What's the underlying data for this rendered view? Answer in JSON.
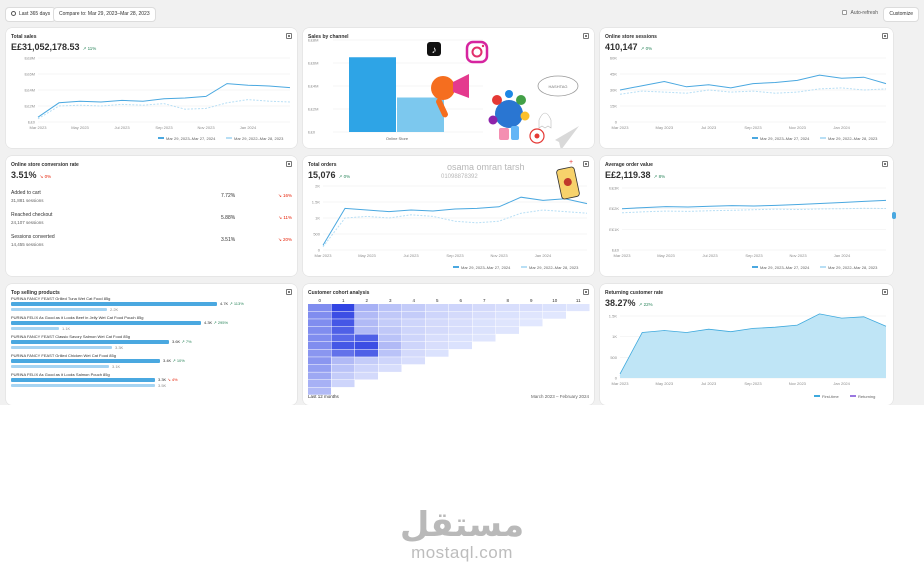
{
  "toolbar": {
    "date_range": "Last 365 days",
    "compare": "Compare to: Mar 29, 2023–Mar 28, 2023",
    "auto_refresh": "Auto-refresh",
    "customize": "Customize"
  },
  "cards": {
    "total_sales": {
      "title": "Total sales",
      "value": "E£31,052,178.53",
      "delta": "11%",
      "y_ticks": [
        "E£8M",
        "E£6M",
        "E£4M",
        "E£2M",
        "E£0"
      ],
      "x_ticks": [
        "Mar 2023",
        "May 2023",
        "Jul 2023",
        "Sep 2023",
        "Nov 2023",
        "Jan 2024"
      ],
      "legend": [
        "Mar 29, 2023–Mar 27, 2024",
        "Mar 29, 2022–Mar 28, 2023"
      ]
    },
    "sales_by_channel": {
      "title": "Sales by channel",
      "y_ticks": [
        "E£8M",
        "E£6M",
        "E£4M",
        "E£2M",
        "E£0"
      ],
      "category": "Online Store"
    },
    "sessions": {
      "title": "Online store sessions",
      "value": "410,147",
      "delta": "0%",
      "y_ticks": [
        "60K",
        "45K",
        "30K",
        "15K",
        "0"
      ],
      "x_ticks": [
        "Mar 2023",
        "May 2023",
        "Jul 2023",
        "Sep 2023",
        "Nov 2023",
        "Jan 2024"
      ],
      "legend": [
        "Mar 29, 2023–Mar 27, 2024",
        "Mar 29, 2022–Mar 28, 2023"
      ]
    },
    "conversion": {
      "title": "Online store conversion rate",
      "value": "3.51%",
      "delta": "0%",
      "rows": [
        {
          "label": "Added to cart",
          "sub": "31,881 sessions",
          "value": "7.72%",
          "change": "16%"
        },
        {
          "label": "Reached checkout",
          "sub": "24,107 sessions",
          "value": "5.88%",
          "change": "11%"
        },
        {
          "label": "Sessions converted",
          "sub": "14,455 sessions",
          "value": "3.51%",
          "change": "20%"
        }
      ]
    },
    "total_orders": {
      "title": "Total orders",
      "value": "15,076",
      "delta": "0%",
      "y_ticks": [
        "2K",
        "1.5K",
        "1K",
        "500",
        "0"
      ],
      "x_ticks": [
        "Mar 2023",
        "May 2023",
        "Jul 2023",
        "Sep 2023",
        "Nov 2023",
        "Jan 2024"
      ],
      "legend": [
        "Mar 29, 2023–Mar 27, 2024",
        "Mar 29, 2022–Mar 28, 2023"
      ]
    },
    "aov": {
      "title": "Average order value",
      "value": "E£2,119.38",
      "delta": "8%",
      "y_ticks": [
        "E£3K",
        "E£2K",
        "E£1K",
        "E£0"
      ],
      "x_ticks": [
        "Mar 2023",
        "May 2023",
        "Jul 2023",
        "Sep 2023",
        "Nov 2023",
        "Jan 2024"
      ],
      "legend": [
        "Mar 29, 2023–Mar 27, 2024",
        "Mar 29, 2022–Mar 28, 2023"
      ]
    },
    "top_products": {
      "title": "Top selling products",
      "items": [
        {
          "name": "PURINA FANCY FEAST Grilled Tuna Wet Cat Food 85g",
          "value": "4.7K",
          "change": "113%",
          "prev": "2.2K",
          "frac": 0.86,
          "prev_frac": 0.4
        },
        {
          "name": "PURINA FELIX As Good as it Looks Beef in Jelly Wet Cat Food Pouch 85g",
          "value": "4.3K",
          "change": "295%",
          "prev": "1.1K",
          "frac": 0.79,
          "prev_frac": 0.2
        },
        {
          "name": "PURINA FANCY FEAST Classic Savory Salmon Wet Cat Food 85g",
          "value": "3.6K",
          "change": "7%",
          "prev": "3.3K",
          "frac": 0.66,
          "prev_frac": 0.42
        },
        {
          "name": "PURINA FANCY FEAST Grilled Chicken Wet Cat Food 85g",
          "value": "3.4K",
          "change": "10%",
          "prev": "3.1K",
          "frac": 0.62,
          "prev_frac": 0.41
        },
        {
          "name": "PURINA FELIX As Good as it Looks Salmon Pouch 85g",
          "value": "3.3K",
          "change": "4%",
          "prev": "3.5K",
          "frac": 0.6,
          "prev_frac": 0.6
        }
      ]
    },
    "cohort": {
      "title": "Customer cohort analysis",
      "columns": [
        "0",
        "1",
        "2",
        "3",
        "4",
        "5",
        "6",
        "7",
        "8",
        "9",
        "10",
        "11"
      ],
      "footer_left": "Last 12 months",
      "footer_right": "March 2023 – February 2024"
    },
    "returning": {
      "title": "Returning customer rate",
      "value": "38.27%",
      "delta": "22%",
      "y_ticks": [
        "1.5K",
        "1K",
        "500",
        "0"
      ],
      "x_ticks": [
        "Mar 2023",
        "May 2023",
        "Jul 2023",
        "Sep 2023",
        "Nov 2023",
        "Jan 2024"
      ],
      "legend": [
        "First-time",
        "Returning"
      ]
    }
  },
  "overlay": {
    "name": "osama omran tarsh",
    "phone": "01098878392"
  },
  "watermark": {
    "arabic": "مستقل",
    "latin": "mostaql.com"
  },
  "colors": {
    "line_primary": "#4aa8e0",
    "line_secondary": "#b8dff5",
    "bar_primary": "#2ea4e6",
    "bar_secondary": "#7cc8ee",
    "up": "#29845a",
    "down": "#e51c00"
  },
  "chart_data": [
    {
      "type": "line",
      "title": "Total sales",
      "x": [
        "Mar 2023",
        "Apr 2023",
        "May 2023",
        "Jun 2023",
        "Jul 2023",
        "Aug 2023",
        "Sep 2023",
        "Oct 2023",
        "Nov 2023",
        "Dec 2023",
        "Jan 2024",
        "Feb 2024",
        "Mar 2024"
      ],
      "series": [
        {
          "name": "Mar 29, 2023–Mar 27, 2024",
          "values": [
            0.6,
            2.4,
            2.6,
            2.5,
            2.7,
            2.6,
            2.9,
            3.0,
            3.2,
            4.8,
            4.6,
            4.5,
            4.3
          ]
        },
        {
          "name": "Mar 29, 2022–Mar 28, 2023",
          "values": [
            0.4,
            2.0,
            2.1,
            2.0,
            2.2,
            2.1,
            2.3,
            1.6,
            1.7,
            2.4,
            2.8,
            2.6,
            2.5
          ]
        }
      ],
      "ylim": [
        0,
        8
      ]
    },
    {
      "type": "bar",
      "title": "Sales by channel",
      "categories": [
        "Online Store"
      ],
      "series": [
        {
          "name": "Mar 29, 2023–Mar 27, 2024",
          "values": [
            6.5
          ]
        },
        {
          "name": "Mar 29, 2022–Mar 28, 2023",
          "values": [
            3.0
          ]
        }
      ],
      "ylim": [
        0,
        8
      ]
    },
    {
      "type": "line",
      "title": "Online store sessions",
      "x": [
        "Mar 2023",
        "Apr 2023",
        "May 2023",
        "Jun 2023",
        "Jul 2023",
        "Aug 2023",
        "Sep 2023",
        "Oct 2023",
        "Nov 2023",
        "Dec 2023",
        "Jan 2024",
        "Feb 2024",
        "Mar 2024"
      ],
      "series": [
        {
          "name": "Mar 29, 2023–Mar 27, 2024",
          "values": [
            30,
            34,
            38,
            33,
            35,
            32,
            36,
            37,
            39,
            44,
            41,
            42,
            36
          ]
        },
        {
          "name": "Mar 29, 2022–Mar 28, 2023",
          "values": [
            26,
            29,
            28,
            27,
            30,
            28,
            29,
            27,
            28,
            31,
            32,
            30,
            31
          ]
        }
      ],
      "ylim": [
        0,
        60
      ]
    },
    {
      "type": "line",
      "title": "Total orders",
      "x": [
        "Mar 2023",
        "Apr 2023",
        "May 2023",
        "Jun 2023",
        "Jul 2023",
        "Aug 2023",
        "Sep 2023",
        "Oct 2023",
        "Nov 2023",
        "Dec 2023",
        "Jan 2024",
        "Feb 2024",
        "Mar 2024"
      ],
      "series": [
        {
          "name": "Mar 29, 2023–Mar 27, 2024",
          "values": [
            150,
            1300,
            1250,
            1200,
            1250,
            1220,
            1280,
            1300,
            1350,
            1650,
            1550,
            1600,
            1450
          ]
        },
        {
          "name": "Mar 29, 2022–Mar 28, 2023",
          "values": [
            100,
            1000,
            1050,
            1000,
            1100,
            1050,
            900,
            850,
            900,
            1150,
            1250,
            1200,
            1150
          ]
        }
      ],
      "ylim": [
        0,
        2000
      ]
    },
    {
      "type": "line",
      "title": "Average order value",
      "x": [
        "Mar 2023",
        "Apr 2023",
        "May 2023",
        "Jun 2023",
        "Jul 2023",
        "Aug 2023",
        "Sep 2023",
        "Oct 2023",
        "Nov 2023",
        "Dec 2023",
        "Jan 2024",
        "Feb 2024",
        "Mar 2024"
      ],
      "series": [
        {
          "name": "Mar 29, 2023–Mar 27, 2024",
          "values": [
            2000,
            2050,
            2100,
            2080,
            2120,
            2150,
            2130,
            2160,
            2200,
            2250,
            2300,
            2350,
            2400
          ]
        },
        {
          "name": "Mar 29, 2022–Mar 28, 2023",
          "values": [
            1800,
            1850,
            1880,
            1870,
            1900,
            1920,
            1950,
            1980,
            1960,
            1990,
            2000,
            2020,
            2010
          ]
        }
      ],
      "ylim": [
        0,
        3000
      ]
    },
    {
      "type": "area",
      "title": "Returning customer rate",
      "x": [
        "Mar 2023",
        "Apr 2023",
        "May 2023",
        "Jun 2023",
        "Jul 2023",
        "Aug 2023",
        "Sep 2023",
        "Oct 2023",
        "Nov 2023",
        "Dec 2023",
        "Jan 2024",
        "Feb 2024",
        "Mar 2024"
      ],
      "series": [
        {
          "name": "First-time",
          "values": [
            100,
            1100,
            1150,
            1100,
            1180,
            1120,
            1200,
            1230,
            1280,
            1550,
            1450,
            1480,
            1250
          ]
        },
        {
          "name": "Returning",
          "values": [
            50,
            700,
            720,
            690,
            750,
            720,
            780,
            800,
            830,
            1000,
            950,
            970,
            900
          ]
        }
      ],
      "ylim": [
        0,
        1500
      ]
    },
    {
      "type": "heatmap",
      "title": "Customer cohort analysis",
      "columns": [
        "0",
        "1",
        "2",
        "3",
        "4",
        "5",
        "6",
        "7",
        "8",
        "9",
        "10",
        "11"
      ],
      "rows": [
        [
          0.55,
          0.95,
          0.35,
          0.25,
          0.2,
          0.15,
          0.15,
          0.12,
          0.1,
          0.1,
          0.08,
          0.06
        ],
        [
          0.55,
          0.9,
          0.3,
          0.22,
          0.2,
          0.15,
          0.12,
          0.1,
          0.08,
          0.06,
          0.05
        ],
        [
          0.55,
          0.85,
          0.3,
          0.2,
          0.15,
          0.12,
          0.1,
          0.08,
          0.06,
          0.05
        ],
        [
          0.55,
          0.8,
          0.3,
          0.22,
          0.15,
          0.12,
          0.1,
          0.08,
          0.06
        ],
        [
          0.55,
          0.75,
          0.8,
          0.25,
          0.15,
          0.1,
          0.08,
          0.06
        ],
        [
          0.55,
          0.85,
          0.9,
          0.3,
          0.15,
          0.1,
          0.08
        ],
        [
          0.5,
          0.7,
          0.8,
          0.25,
          0.12,
          0.08
        ],
        [
          0.5,
          0.3,
          0.2,
          0.15,
          0.1
        ],
        [
          0.45,
          0.25,
          0.15,
          0.1
        ],
        [
          0.4,
          0.2,
          0.12
        ],
        [
          0.35,
          0.15
        ],
        [
          0.3
        ]
      ]
    }
  ]
}
